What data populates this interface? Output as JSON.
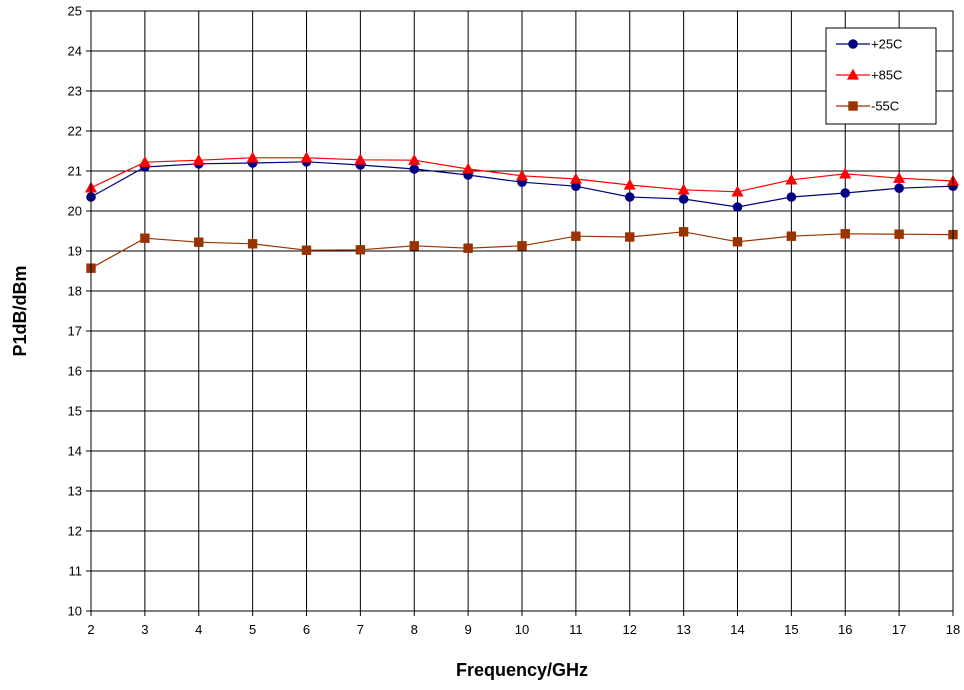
{
  "chart_data": {
    "type": "line",
    "title": "",
    "xlabel": "Frequency/GHz",
    "ylabel": "P1dB/dBm",
    "xlim": [
      2,
      18
    ],
    "ylim": [
      10,
      25
    ],
    "x_ticks": [
      "2",
      "3",
      "4",
      "5",
      "6",
      "7",
      "8",
      "9",
      "10",
      "11",
      "12",
      "13",
      "14",
      "15",
      "16",
      "17",
      "18"
    ],
    "y_ticks": [
      "10",
      "11",
      "12",
      "13",
      "14",
      "15",
      "16",
      "17",
      "18",
      "19",
      "20",
      "21",
      "22",
      "23",
      "24",
      "25"
    ],
    "grid": true,
    "legend_position": "top-right",
    "x": [
      2,
      3,
      4,
      5,
      6,
      7,
      8,
      9,
      10,
      11,
      12,
      13,
      14,
      15,
      16,
      17,
      18
    ],
    "series": [
      {
        "name": "+25C",
        "color": "#000080",
        "marker": "circle",
        "values": [
          20.35,
          21.1,
          21.18,
          21.2,
          21.23,
          21.15,
          21.05,
          20.9,
          20.72,
          20.62,
          20.35,
          20.3,
          20.1,
          20.35,
          20.45,
          20.57,
          20.62
        ]
      },
      {
        "name": "+85C",
        "color": "#ff0000",
        "marker": "triangle",
        "values": [
          20.58,
          21.22,
          21.27,
          21.33,
          21.33,
          21.28,
          21.27,
          21.05,
          20.88,
          20.8,
          20.65,
          20.53,
          20.48,
          20.78,
          20.93,
          20.82,
          20.75
        ]
      },
      {
        "name": "-55C",
        "color": "#993300",
        "marker": "square",
        "values": [
          18.57,
          19.32,
          19.22,
          19.18,
          19.02,
          19.03,
          19.13,
          19.07,
          19.13,
          19.37,
          19.35,
          19.48,
          19.23,
          19.37,
          19.43,
          19.42,
          19.41
        ]
      }
    ]
  }
}
